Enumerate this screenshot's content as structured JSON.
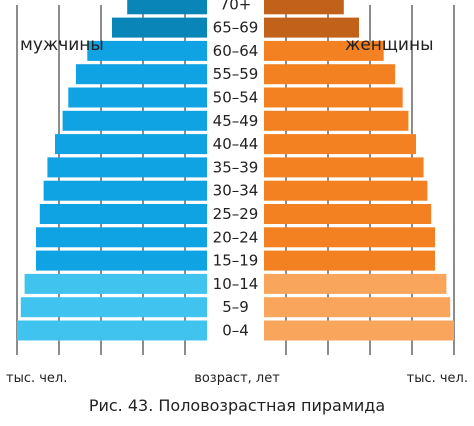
{
  "chart_data": {
    "type": "bar",
    "orientation": "horizontal-pyramid",
    "categories": [
      "0–4",
      "5–9",
      "10–14",
      "15–19",
      "20–24",
      "25–29",
      "30–34",
      "35–39",
      "40–44",
      "45–49",
      "50–54",
      "55–59",
      "60–64",
      "65–69",
      "70+"
    ],
    "series": [
      {
        "name": "мужчины",
        "values": [
          100,
          98,
          96,
          90,
          90,
          88,
          86,
          84,
          80,
          76,
          73,
          69,
          63,
          50,
          42
        ]
      },
      {
        "name": "женщины",
        "values": [
          100,
          98,
          96,
          90,
          90,
          88,
          86,
          84,
          80,
          76,
          73,
          69,
          63,
          50,
          42
        ]
      }
    ],
    "xlabel_left": "тыс. чел.",
    "xlabel_center": "возраст, лет",
    "xlabel_right": "тыс. чел.",
    "xlim": [
      0,
      100
    ],
    "grid": true,
    "colors": {
      "male_young": "#41c3f0",
      "male_working": "#0fa3e3",
      "male_old": "#0a85b8",
      "female_young": "#f9a55b",
      "female_working": "#f38121",
      "female_old": "#c2611a",
      "grid": "#1a1a1a"
    },
    "color_groups": {
      "young": [
        "0–4",
        "5–9",
        "10–14"
      ],
      "old": [
        "65–69",
        "70+"
      ]
    }
  },
  "caption": "Рис. 43. Половозрастная пирамида"
}
